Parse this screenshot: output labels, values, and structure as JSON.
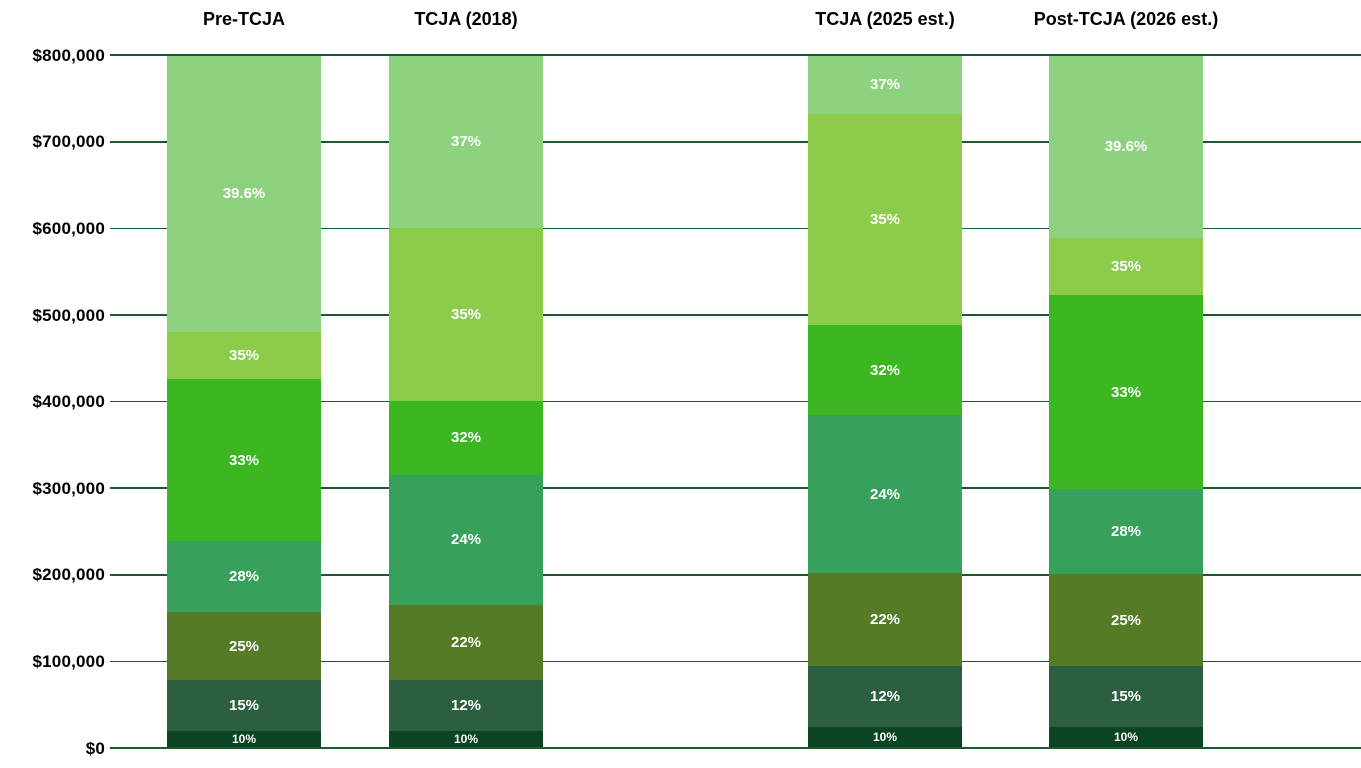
{
  "chart_data": {
    "type": "bar",
    "subtype": "stacked-column-tax-brackets",
    "title": "",
    "grid": true,
    "background_color": "#FFFFFF",
    "gridline_color": "#1A5A2E",
    "axis_text_color": "#000000",
    "segment_label_color": "#FFFFFF",
    "y_axis": {
      "min": 0,
      "max": 800000,
      "tick_step": 100000,
      "ticks": [
        {
          "value": 0,
          "label": "$0"
        },
        {
          "value": 100000,
          "label": "$100,000"
        },
        {
          "value": 200000,
          "label": "$200,000"
        },
        {
          "value": 300000,
          "label": "$300,000"
        },
        {
          "value": 400000,
          "label": "$400,000"
        },
        {
          "value": 500000,
          "label": "$500,000"
        },
        {
          "value": 600000,
          "label": "$600,000"
        },
        {
          "value": 700000,
          "label": "$700,000"
        },
        {
          "value": 800000,
          "label": "$800,000"
        }
      ]
    },
    "rate_colors": {
      "10%": "#0B4423",
      "12%": "#2B5F40",
      "15%": "#2B5F40",
      "22%": "#567B27",
      "25%": "#567B27",
      "24%": "#37A15B",
      "28%": "#37A15B",
      "32%": "#3CB621",
      "33%": "#3CB621",
      "35%": "#8DCB4A",
      "37%": "#8DD37F",
      "39.6%": "#8DD37F"
    },
    "columns": [
      {
        "header": "Pre-TCJA",
        "brackets": [
          {
            "rate": "10%",
            "from": 0,
            "to": 19050
          },
          {
            "rate": "15%",
            "from": 19050,
            "to": 77400
          },
          {
            "rate": "25%",
            "from": 77400,
            "to": 156150
          },
          {
            "rate": "28%",
            "from": 156150,
            "to": 237950
          },
          {
            "rate": "33%",
            "from": 237950,
            "to": 424950
          },
          {
            "rate": "35%",
            "from": 424950,
            "to": 480050
          },
          {
            "rate": "39.6%",
            "from": 480050,
            "to": 800000
          }
        ]
      },
      {
        "header": "TCJA (2018)",
        "brackets": [
          {
            "rate": "10%",
            "from": 0,
            "to": 19050
          },
          {
            "rate": "12%",
            "from": 19050,
            "to": 77400
          },
          {
            "rate": "22%",
            "from": 77400,
            "to": 165000
          },
          {
            "rate": "24%",
            "from": 165000,
            "to": 315000
          },
          {
            "rate": "32%",
            "from": 315000,
            "to": 400000
          },
          {
            "rate": "35%",
            "from": 400000,
            "to": 600000
          },
          {
            "rate": "37%",
            "from": 600000,
            "to": 800000
          }
        ]
      },
      {
        "header": "TCJA (2025 est.)",
        "brackets": [
          {
            "rate": "10%",
            "from": 0,
            "to": 23200
          },
          {
            "rate": "12%",
            "from": 23200,
            "to": 94300
          },
          {
            "rate": "22%",
            "from": 94300,
            "to": 201050
          },
          {
            "rate": "24%",
            "from": 201050,
            "to": 383900
          },
          {
            "rate": "32%",
            "from": 383900,
            "to": 487450
          },
          {
            "rate": "35%",
            "from": 487450,
            "to": 731200
          },
          {
            "rate": "37%",
            "from": 731200,
            "to": 800000
          }
        ]
      },
      {
        "header": "Post-TCJA (2026 est.)",
        "brackets": [
          {
            "rate": "10%",
            "from": 0,
            "to": 23200
          },
          {
            "rate": "15%",
            "from": 23200,
            "to": 94300
          },
          {
            "rate": "25%",
            "from": 94300,
            "to": 200000
          },
          {
            "rate": "28%",
            "from": 200000,
            "to": 298000
          },
          {
            "rate": "33%",
            "from": 298000,
            "to": 522000
          },
          {
            "rate": "35%",
            "from": 522000,
            "to": 588000
          },
          {
            "rate": "39.6%",
            "from": 588000,
            "to": 800000
          }
        ]
      }
    ]
  }
}
